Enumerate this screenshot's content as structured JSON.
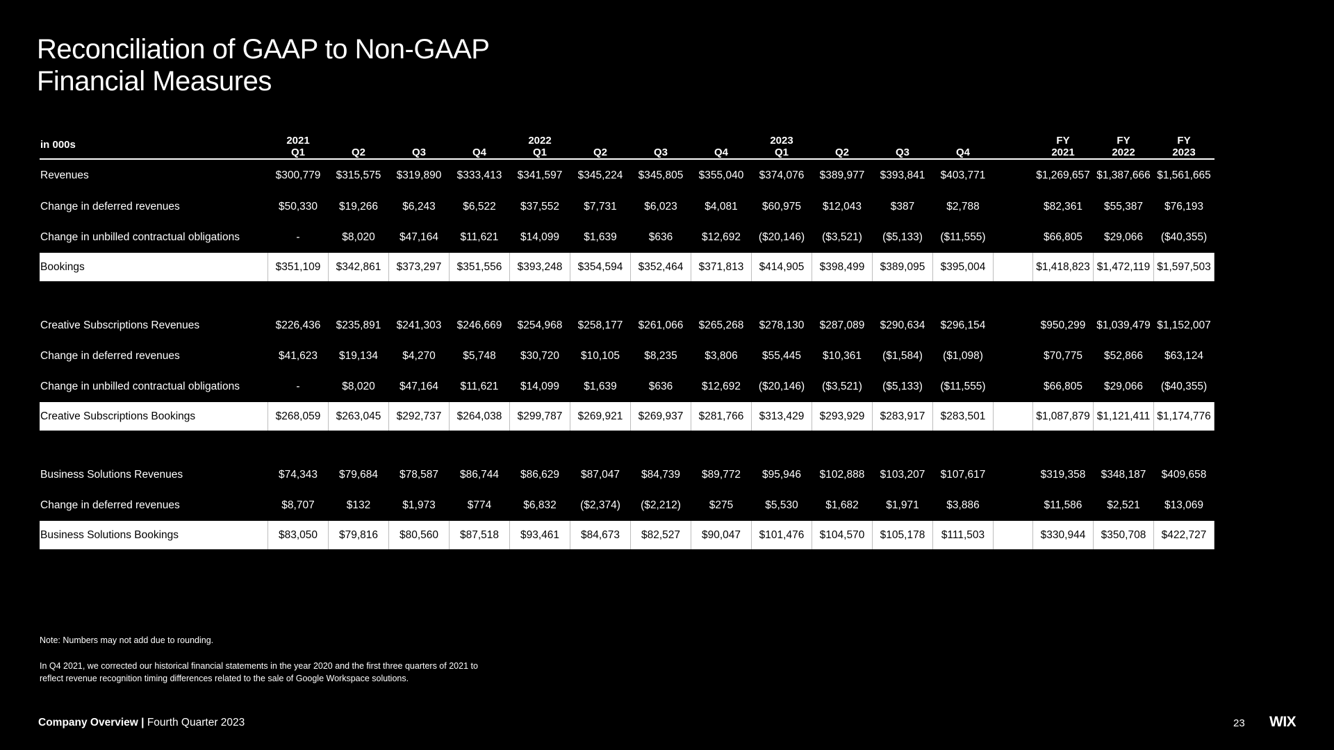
{
  "title": {
    "line1": "Reconciliation of GAAP to Non-GAAP",
    "line2": "Financial Measures"
  },
  "table": {
    "unit_label": "in 000s",
    "quarter_headers": [
      {
        "year": "2021",
        "q": "Q1"
      },
      {
        "year": "",
        "q": "Q2"
      },
      {
        "year": "",
        "q": "Q3"
      },
      {
        "year": "",
        "q": "Q4"
      },
      {
        "year": "2022",
        "q": "Q1"
      },
      {
        "year": "",
        "q": "Q2"
      },
      {
        "year": "",
        "q": "Q3"
      },
      {
        "year": "",
        "q": "Q4"
      },
      {
        "year": "2023",
        "q": "Q1"
      },
      {
        "year": "",
        "q": "Q2"
      },
      {
        "year": "",
        "q": "Q3"
      },
      {
        "year": "",
        "q": "Q4"
      }
    ],
    "fy_headers": [
      {
        "top": "FY",
        "bottom": "2021"
      },
      {
        "top": "FY",
        "bottom": "2022"
      },
      {
        "top": "FY",
        "bottom": "2023"
      }
    ],
    "rows": [
      {
        "label": "Revenues",
        "type": "normal",
        "q": [
          "$300,779",
          "$315,575",
          "$319,890",
          "$333,413",
          "$341,597",
          "$345,224",
          "$345,805",
          "$355,040",
          "$374,076",
          "$389,977",
          "$393,841",
          "$403,771"
        ],
        "fy": [
          "$1,269,657",
          "$1,387,666",
          "$1,561,665"
        ]
      },
      {
        "label": "Change in deferred revenues",
        "type": "normal",
        "q": [
          "$50,330",
          "$19,266",
          "$6,243",
          "$6,522",
          "$37,552",
          "$7,731",
          "$6,023",
          "$4,081",
          "$60,975",
          "$12,043",
          "$387",
          "$2,788"
        ],
        "fy": [
          "$82,361",
          "$55,387",
          "$76,193"
        ]
      },
      {
        "label": "Change in unbilled contractual obligations",
        "type": "normal",
        "q": [
          "-",
          "$8,020",
          "$47,164",
          "$11,621",
          "$14,099",
          "$1,639",
          "$636",
          "$12,692",
          "($20,146)",
          "($3,521)",
          "($5,133)",
          "($11,555)"
        ],
        "fy": [
          "$66,805",
          "$29,066",
          "($40,355)"
        ]
      },
      {
        "label": "Bookings",
        "type": "total",
        "q": [
          "$351,109",
          "$342,861",
          "$373,297",
          "$351,556",
          "$393,248",
          "$354,594",
          "$352,464",
          "$371,813",
          "$414,905",
          "$398,499",
          "$389,095",
          "$395,004"
        ],
        "fy": [
          "$1,418,823",
          "$1,472,119",
          "$1,597,503"
        ]
      },
      {
        "label": "Creative Subscriptions Revenues",
        "type": "normal",
        "q": [
          "$226,436",
          "$235,891",
          "$241,303",
          "$246,669",
          "$254,968",
          "$258,177",
          "$261,066",
          "$265,268",
          "$278,130",
          "$287,089",
          "$290,634",
          "$296,154"
        ],
        "fy": [
          "$950,299",
          "$1,039,479",
          "$1,152,007"
        ]
      },
      {
        "label": "Change in deferred revenues",
        "type": "normal",
        "q": [
          "$41,623",
          "$19,134",
          "$4,270",
          "$5,748",
          "$30,720",
          "$10,105",
          "$8,235",
          "$3,806",
          "$55,445",
          "$10,361",
          "($1,584)",
          "($1,098)"
        ],
        "fy": [
          "$70,775",
          "$52,866",
          "$63,124"
        ]
      },
      {
        "label": "Change in unbilled contractual obligations",
        "type": "normal",
        "q": [
          "-",
          "$8,020",
          "$47,164",
          "$11,621",
          "$14,099",
          "$1,639",
          "$636",
          "$12,692",
          "($20,146)",
          "($3,521)",
          "($5,133)",
          "($11,555)"
        ],
        "fy": [
          "$66,805",
          "$29,066",
          "($40,355)"
        ]
      },
      {
        "label": "Creative Subscriptions Bookings",
        "type": "total",
        "q": [
          "$268,059",
          "$263,045",
          "$292,737",
          "$264,038",
          "$299,787",
          "$269,921",
          "$269,937",
          "$281,766",
          "$313,429",
          "$293,929",
          "$283,917",
          "$283,501"
        ],
        "fy": [
          "$1,087,879",
          "$1,121,411",
          "$1,174,776"
        ]
      },
      {
        "label": "Business Solutions Revenues",
        "type": "normal",
        "q": [
          "$74,343",
          "$79,684",
          "$78,587",
          "$86,744",
          "$86,629",
          "$87,047",
          "$84,739",
          "$89,772",
          "$95,946",
          "$102,888",
          "$103,207",
          "$107,617"
        ],
        "fy": [
          "$319,358",
          "$348,187",
          "$409,658"
        ]
      },
      {
        "label": "Change in deferred revenues",
        "type": "normal",
        "q": [
          "$8,707",
          "$132",
          "$1,973",
          "$774",
          "$6,832",
          "($2,374)",
          "($2,212)",
          "$275",
          "$5,530",
          "$1,682",
          "$1,971",
          "$3,886"
        ],
        "fy": [
          "$11,586",
          "$2,521",
          "$13,069"
        ]
      },
      {
        "label": "Business Solutions Bookings",
        "type": "total",
        "q": [
          "$83,050",
          "$79,816",
          "$80,560",
          "$87,518",
          "$93,461",
          "$84,673",
          "$82,527",
          "$90,047",
          "$101,476",
          "$104,570",
          "$105,178",
          "$111,503"
        ],
        "fy": [
          "$330,944",
          "$350,708",
          "$422,727"
        ]
      }
    ]
  },
  "notes": {
    "note1": "Note: Numbers may not add due to rounding.",
    "note2_line1": "In Q4 2021, we corrected our historical financial statements in the year 2020 and the first three quarters of 2021 to",
    "note2_line2": "reflect revenue recognition timing differences related to the sale of Google Workspace solutions."
  },
  "footer": {
    "section": "Company Overview",
    "separator": "|",
    "period": "Fourth Quarter 2023",
    "page_number": "23",
    "logo": "WIX"
  }
}
